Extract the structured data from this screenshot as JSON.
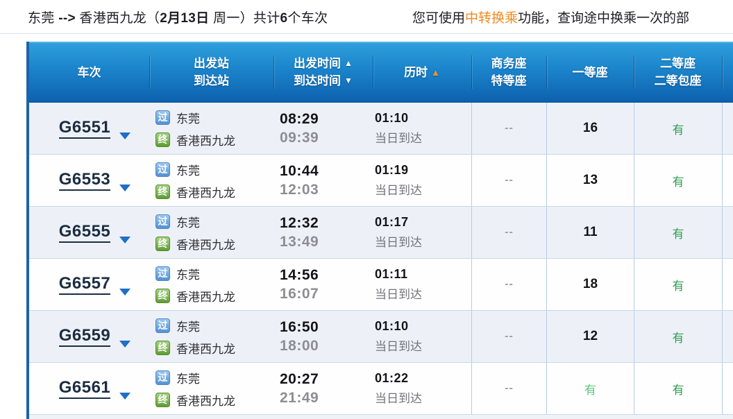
{
  "header_bar": {
    "route": {
      "from": "东莞 ",
      "arrow": "--> ",
      "to": "香港西九龙（",
      "date": "2月13日",
      "weekday": " 周一）共计",
      "count": "6",
      "suffix": "个车次"
    },
    "notice": {
      "pre": "您可使用",
      "highlight": "中转换乘",
      "post": "功能，查询途中换乘一次的部"
    }
  },
  "table": {
    "columns": [
      {
        "line1": "车次"
      },
      {
        "line1": "出发站",
        "line2": "到达站"
      },
      {
        "line1": "出发时间",
        "arrow1": "▲",
        "line2": "到达时间",
        "arrow2": "▼"
      },
      {
        "line1": "历时",
        "arrow1": "▲"
      },
      {
        "line1": "商务座",
        "line2": "特等座"
      },
      {
        "line1": "一等座"
      },
      {
        "line1": "二等座",
        "line2": "二等包座"
      }
    ],
    "badges": {
      "pass": "过",
      "terminal": "终"
    },
    "rows": [
      {
        "train_no": "G6551",
        "from": "东莞",
        "to": "香港西九龙",
        "dep": "08:29",
        "arr": "09:39",
        "duration": "01:10",
        "arrive_day": "当日到达",
        "business": "--",
        "first": "16",
        "second": "有"
      },
      {
        "train_no": "G6553",
        "from": "东莞",
        "to": "香港西九龙",
        "dep": "10:44",
        "arr": "12:03",
        "duration": "01:19",
        "arrive_day": "当日到达",
        "business": "--",
        "first": "13",
        "second": "有"
      },
      {
        "train_no": "G6555",
        "from": "东莞",
        "to": "香港西九龙",
        "dep": "12:32",
        "arr": "13:49",
        "duration": "01:17",
        "arrive_day": "当日到达",
        "business": "--",
        "first": "11",
        "second": "有"
      },
      {
        "train_no": "G6557",
        "from": "东莞",
        "to": "香港西九龙",
        "dep": "14:56",
        "arr": "16:07",
        "duration": "01:11",
        "arrive_day": "当日到达",
        "business": "--",
        "first": "18",
        "second": "有"
      },
      {
        "train_no": "G6559",
        "from": "东莞",
        "to": "香港西九龙",
        "dep": "16:50",
        "arr": "18:00",
        "duration": "01:10",
        "arrive_day": "当日到达",
        "business": "--",
        "first": "12",
        "second": "有"
      },
      {
        "train_no": "G6561",
        "from": "东莞",
        "to": "香港西九龙",
        "dep": "20:27",
        "arr": "21:49",
        "duration": "01:22",
        "arrive_day": "当日到达",
        "business": "--",
        "first": "有",
        "second": "有"
      }
    ],
    "colors": {
      "header_blue_top": "#2fa0dc",
      "header_blue_bottom": "#0e63b0",
      "left_border_blue": "#1b63ab",
      "link_navy": "#1c2d42",
      "caret_blue": "#1e6fc6",
      "available_green": "#2f9e50",
      "highlight_orange": "#f08a1d",
      "sort_arrow_orange": "#f5941e",
      "alt_row": "#edf1f7"
    }
  }
}
